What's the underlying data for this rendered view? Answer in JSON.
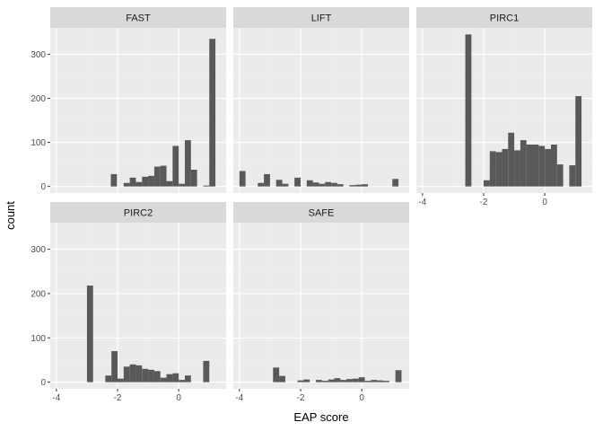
{
  "chart_data": {
    "type": "bar",
    "layout": "facet_wrap",
    "xlabel": "EAP score",
    "ylabel": "count",
    "xlim": [
      -4.2,
      1.55
    ],
    "ylim": [
      -15,
      360
    ],
    "x_ticks": [
      -4,
      -2,
      0
    ],
    "x_tick_labels": [
      "-4",
      "-2",
      "0"
    ],
    "y_ticks": [
      0,
      100,
      200,
      300
    ],
    "y_tick_labels": [
      "0",
      "100",
      "200",
      "300"
    ],
    "grid": true,
    "colors": {
      "bar": "#595959",
      "panel_bg": "#ebebeb",
      "strip_bg": "#d9d9d9",
      "grid_major": "#ffffff",
      "grid_minor": "#f2f2f2"
    },
    "panels": [
      {
        "label": "FAST",
        "bins": [
          {
            "x0": -2.22,
            "x1": -2.02,
            "count": 28
          },
          {
            "x0": -1.8,
            "x1": -1.6,
            "count": 8
          },
          {
            "x0": -1.6,
            "x1": -1.4,
            "count": 20
          },
          {
            "x0": -1.4,
            "x1": -1.2,
            "count": 10
          },
          {
            "x0": -1.2,
            "x1": -1.0,
            "count": 22
          },
          {
            "x0": -1.0,
            "x1": -0.8,
            "count": 24
          },
          {
            "x0": -0.8,
            "x1": -0.6,
            "count": 45
          },
          {
            "x0": -0.6,
            "x1": -0.4,
            "count": 47
          },
          {
            "x0": -0.4,
            "x1": -0.2,
            "count": 12
          },
          {
            "x0": -0.2,
            "x1": 0.0,
            "count": 92
          },
          {
            "x0": 0.0,
            "x1": 0.2,
            "count": 6
          },
          {
            "x0": 0.2,
            "x1": 0.4,
            "count": 105
          },
          {
            "x0": 0.4,
            "x1": 0.6,
            "count": 38
          },
          {
            "x0": 0.8,
            "x1": 1.0,
            "count": 2
          },
          {
            "x0": 1.0,
            "x1": 1.2,
            "count": 335
          }
        ]
      },
      {
        "label": "LIFT",
        "bins": [
          {
            "x0": -4.0,
            "x1": -3.8,
            "count": 35
          },
          {
            "x0": -3.4,
            "x1": -3.2,
            "count": 8
          },
          {
            "x0": -3.2,
            "x1": -3.0,
            "count": 28
          },
          {
            "x0": -2.8,
            "x1": -2.6,
            "count": 15
          },
          {
            "x0": -2.6,
            "x1": -2.4,
            "count": 6
          },
          {
            "x0": -2.2,
            "x1": -2.0,
            "count": 20
          },
          {
            "x0": -1.8,
            "x1": -1.6,
            "count": 14
          },
          {
            "x0": -1.6,
            "x1": -1.4,
            "count": 9
          },
          {
            "x0": -1.4,
            "x1": -1.2,
            "count": 6
          },
          {
            "x0": -1.2,
            "x1": -1.0,
            "count": 10
          },
          {
            "x0": -1.0,
            "x1": -0.8,
            "count": 8
          },
          {
            "x0": -0.8,
            "x1": -0.6,
            "count": 5
          },
          {
            "x0": -0.4,
            "x1": -0.2,
            "count": 3
          },
          {
            "x0": -0.2,
            "x1": 0.0,
            "count": 4
          },
          {
            "x0": 0.0,
            "x1": 0.2,
            "count": 5
          },
          {
            "x0": 1.0,
            "x1": 1.2,
            "count": 17
          }
        ]
      },
      {
        "label": "PIRC1",
        "bins": [
          {
            "x0": -2.6,
            "x1": -2.4,
            "count": 345
          },
          {
            "x0": -2.0,
            "x1": -1.8,
            "count": 14
          },
          {
            "x0": -1.8,
            "x1": -1.6,
            "count": 80
          },
          {
            "x0": -1.6,
            "x1": -1.4,
            "count": 78
          },
          {
            "x0": -1.4,
            "x1": -1.2,
            "count": 85
          },
          {
            "x0": -1.2,
            "x1": -1.0,
            "count": 122
          },
          {
            "x0": -1.0,
            "x1": -0.8,
            "count": 82
          },
          {
            "x0": -0.8,
            "x1": -0.6,
            "count": 105
          },
          {
            "x0": -0.6,
            "x1": -0.4,
            "count": 95
          },
          {
            "x0": -0.4,
            "x1": -0.2,
            "count": 95
          },
          {
            "x0": -0.2,
            "x1": 0.0,
            "count": 92
          },
          {
            "x0": 0.0,
            "x1": 0.2,
            "count": 85
          },
          {
            "x0": 0.2,
            "x1": 0.4,
            "count": 95
          },
          {
            "x0": 0.4,
            "x1": 0.6,
            "count": 50
          },
          {
            "x0": 0.8,
            "x1": 1.0,
            "count": 48
          },
          {
            "x0": 1.0,
            "x1": 1.2,
            "count": 205
          }
        ]
      },
      {
        "label": "PIRC2",
        "bins": [
          {
            "x0": -3.0,
            "x1": -2.8,
            "count": 218
          },
          {
            "x0": -2.4,
            "x1": -2.2,
            "count": 15
          },
          {
            "x0": -2.2,
            "x1": -2.0,
            "count": 70
          },
          {
            "x0": -2.0,
            "x1": -1.8,
            "count": 8
          },
          {
            "x0": -1.8,
            "x1": -1.6,
            "count": 35
          },
          {
            "x0": -1.6,
            "x1": -1.4,
            "count": 40
          },
          {
            "x0": -1.4,
            "x1": -1.2,
            "count": 38
          },
          {
            "x0": -1.2,
            "x1": -1.0,
            "count": 30
          },
          {
            "x0": -1.0,
            "x1": -0.8,
            "count": 28
          },
          {
            "x0": -0.8,
            "x1": -0.6,
            "count": 25
          },
          {
            "x0": -0.6,
            "x1": -0.4,
            "count": 10
          },
          {
            "x0": -0.4,
            "x1": -0.2,
            "count": 18
          },
          {
            "x0": -0.2,
            "x1": 0.0,
            "count": 20
          },
          {
            "x0": 0.0,
            "x1": 0.2,
            "count": 5
          },
          {
            "x0": 0.2,
            "x1": 0.4,
            "count": 15
          },
          {
            "x0": 0.8,
            "x1": 1.0,
            "count": 48
          }
        ]
      },
      {
        "label": "SAFE",
        "bins": [
          {
            "x0": -2.9,
            "x1": -2.7,
            "count": 33
          },
          {
            "x0": -2.7,
            "x1": -2.5,
            "count": 14
          },
          {
            "x0": -2.1,
            "x1": -1.9,
            "count": 4
          },
          {
            "x0": -1.9,
            "x1": -1.7,
            "count": 6
          },
          {
            "x0": -1.5,
            "x1": -1.3,
            "count": 5
          },
          {
            "x0": -1.3,
            "x1": -1.1,
            "count": 3
          },
          {
            "x0": -1.1,
            "x1": -0.9,
            "count": 6
          },
          {
            "x0": -0.9,
            "x1": -0.7,
            "count": 9
          },
          {
            "x0": -0.7,
            "x1": -0.5,
            "count": 5
          },
          {
            "x0": -0.5,
            "x1": -0.3,
            "count": 7
          },
          {
            "x0": -0.3,
            "x1": -0.1,
            "count": 8
          },
          {
            "x0": -0.1,
            "x1": 0.1,
            "count": 11
          },
          {
            "x0": 0.1,
            "x1": 0.3,
            "count": 3
          },
          {
            "x0": 0.3,
            "x1": 0.5,
            "count": 5
          },
          {
            "x0": 0.5,
            "x1": 0.7,
            "count": 4
          },
          {
            "x0": 0.7,
            "x1": 0.9,
            "count": 3
          },
          {
            "x0": 1.1,
            "x1": 1.3,
            "count": 27
          }
        ]
      }
    ]
  }
}
